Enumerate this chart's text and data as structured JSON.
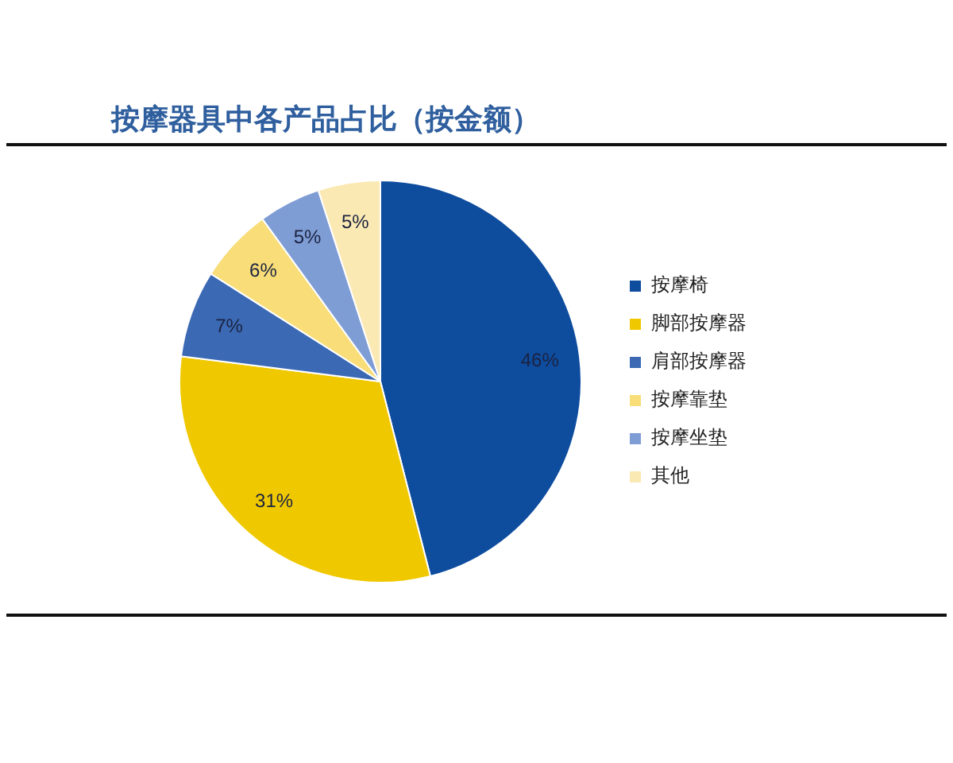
{
  "chart_data": {
    "type": "pie",
    "title": "按摩器具中各产品占比（按金额）",
    "categories": [
      "按摩椅",
      "脚部按摩器",
      "肩部按摩器",
      "按摩靠垫",
      "按摩坐垫",
      "其他"
    ],
    "values": [
      46,
      31,
      7,
      6,
      5,
      5
    ],
    "colors": [
      "#0e4c9e",
      "#f0c800",
      "#3b69b4",
      "#f8dd78",
      "#7f9dd5",
      "#fbe9b3"
    ],
    "value_labels": [
      "46%",
      "31%",
      "7%",
      "6%",
      "5%",
      "5%"
    ],
    "legend": "right"
  }
}
